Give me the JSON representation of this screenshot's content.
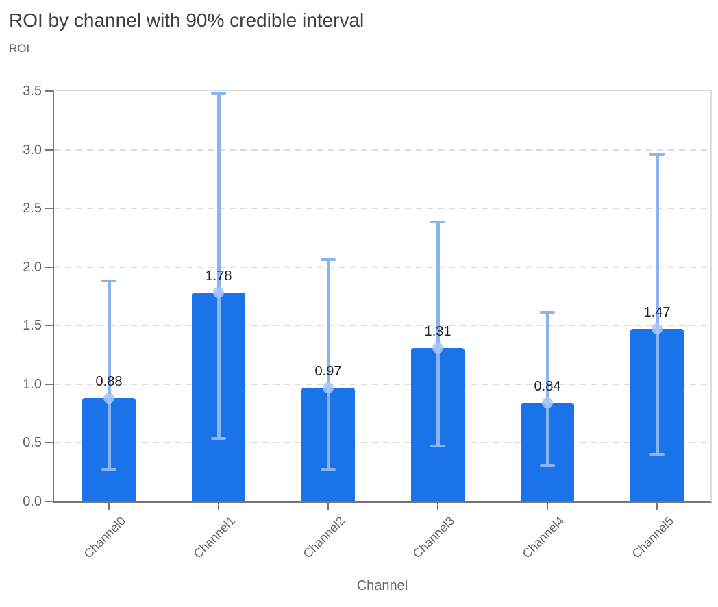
{
  "chart_data": {
    "type": "bar",
    "title": "ROI by channel with 90% credible interval",
    "ylabel": "ROI",
    "xlabel": "Channel",
    "categories": [
      "Channel0",
      "Channel1",
      "Channel2",
      "Channel3",
      "Channel4",
      "Channel5"
    ],
    "values": [
      0.88,
      1.78,
      0.97,
      1.31,
      0.84,
      1.47
    ],
    "bar_labels": [
      "0.88",
      "1.78",
      "0.97",
      "1.31",
      "0.84",
      "1.47"
    ],
    "interval_name": "90% credible interval",
    "ci_low": [
      0.27,
      0.53,
      0.27,
      0.47,
      0.3,
      0.4
    ],
    "ci_high": [
      1.89,
      3.49,
      2.07,
      2.39,
      1.62,
      2.97
    ],
    "ylim": [
      0,
      3.5
    ],
    "yticks": [
      "0.0",
      "0.5",
      "1.0",
      "1.5",
      "2.0",
      "2.5",
      "3.0",
      "3.5"
    ],
    "grid": "horizontal-dashed",
    "legend": "none",
    "colors": {
      "bar": "#1a73e8",
      "interval_line": "#8ab3f0",
      "mean_marker": "#a8c7fa",
      "gridline": "#dadce0",
      "axis_line": "#757575",
      "title_text": "#3c4043",
      "axis_text": "#5f6368",
      "data_label_text": "#202124"
    }
  }
}
